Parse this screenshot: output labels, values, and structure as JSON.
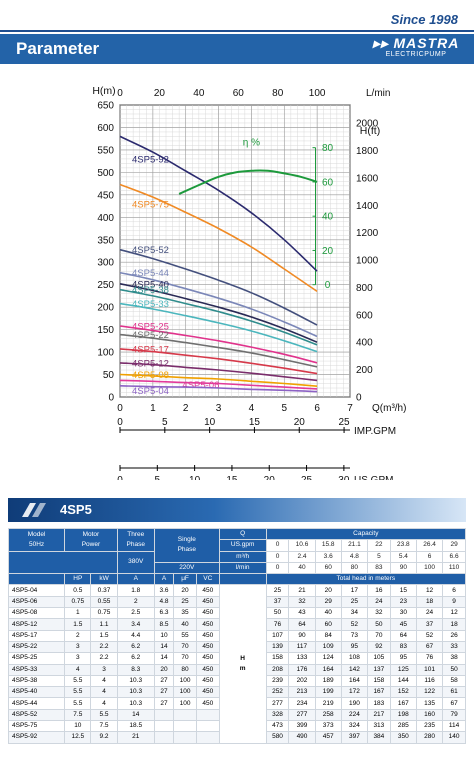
{
  "header": {
    "since": "Since 1998",
    "title": "Parameter",
    "brand": "MASTRA",
    "brand_sub": "ELECTRICPUMP"
  },
  "chart_data": {
    "type": "line",
    "x_axis": {
      "label": "Q(m³/h)",
      "min": 0,
      "max": 7,
      "ticks": [
        0,
        1,
        2,
        3,
        4,
        5,
        6,
        7
      ]
    },
    "top_axis": {
      "label": "L/min",
      "ticks": [
        0,
        20,
        40,
        60,
        80,
        100
      ]
    },
    "y_left": {
      "label": "H(m)",
      "min": 0,
      "max": 650,
      "ticks": [
        0,
        50,
        100,
        150,
        200,
        250,
        300,
        350,
        400,
        450,
        500,
        550,
        600,
        650
      ]
    },
    "y_right": {
      "label": "H(ft)",
      "ticks": [
        0,
        200,
        400,
        600,
        800,
        1000,
        1200,
        1400,
        1600,
        1800,
        2000
      ]
    },
    "eff_axis": {
      "label": "η %",
      "ticks": [
        0,
        20,
        40,
        60,
        80
      ],
      "color": "#1d9a3c"
    },
    "imp_gpm": {
      "label": "IMP.GPM",
      "ticks": [
        0,
        5,
        10,
        15,
        20,
        25
      ]
    },
    "us_gpm": {
      "label": "US.GPM",
      "ticks": [
        0,
        5,
        10,
        15,
        20,
        25,
        30
      ]
    },
    "series": [
      {
        "name": "4SP5-92",
        "color": "#2b2a6e",
        "x": [
          0,
          1,
          2,
          3,
          4,
          5,
          6
        ],
        "y": [
          580,
          545,
          503,
          460,
          410,
          350,
          280
        ]
      },
      {
        "name": "4SP5-75",
        "color": "#f08a24",
        "x": [
          0,
          1,
          2,
          3,
          4,
          5,
          6
        ],
        "y": [
          473,
          445,
          411,
          375,
          334,
          285,
          235
        ]
      },
      {
        "name": "4SP5-52",
        "color": "#44507d",
        "x": [
          0,
          1,
          2,
          3,
          4,
          5,
          6
        ],
        "y": [
          328,
          308,
          285,
          260,
          232,
          198,
          160
        ]
      },
      {
        "name": "4SP5-44",
        "color": "#7b87b8",
        "x": [
          0,
          1,
          2,
          3,
          4,
          5,
          6
        ],
        "y": [
          277,
          261,
          241,
          220,
          196,
          167,
          135
        ]
      },
      {
        "name": "4SP5-40",
        "color": "#2a2a55",
        "x": [
          0,
          1,
          2,
          3,
          4,
          5,
          6
        ],
        "y": [
          252,
          237,
          219,
          200,
          178,
          152,
          122
        ]
      },
      {
        "name": "4SP5-38",
        "color": "#2f8c8c",
        "x": [
          0,
          1,
          2,
          3,
          4,
          5,
          6
        ],
        "y": [
          239,
          225,
          208,
          190,
          169,
          144,
          116
        ]
      },
      {
        "name": "4SP5-33",
        "color": "#4bb6bd",
        "x": [
          0,
          1,
          2,
          3,
          4,
          5,
          6
        ],
        "y": [
          208,
          196,
          181,
          165,
          147,
          125,
          101
        ]
      },
      {
        "name": "4SP5-25",
        "color": "#e0338c",
        "x": [
          0,
          1,
          2,
          3,
          4,
          5,
          6
        ],
        "y": [
          158,
          148,
          137,
          125,
          111,
          95,
          76
        ]
      },
      {
        "name": "4SP5-22",
        "color": "#6f6f6f",
        "x": [
          0,
          1,
          2,
          3,
          4,
          5,
          6
        ],
        "y": [
          139,
          131,
          121,
          110,
          98,
          83,
          67
        ]
      },
      {
        "name": "4SP5-17",
        "color": "#d6394a",
        "x": [
          0,
          1,
          2,
          3,
          4,
          5,
          6
        ],
        "y": [
          107,
          101,
          93,
          85,
          75,
          64,
          52
        ]
      },
      {
        "name": "4SP5-12",
        "color": "#7a2d6b",
        "x": [
          0,
          1,
          2,
          3,
          4,
          5,
          6
        ],
        "y": [
          76,
          72,
          66,
          60,
          53,
          45,
          37
        ]
      },
      {
        "name": "4SP5-08",
        "color": "#f0a000",
        "x": [
          0,
          1,
          2,
          3,
          4,
          5,
          6
        ],
        "y": [
          50,
          47,
          43,
          40,
          35,
          30,
          24
        ]
      },
      {
        "name": "4SP5-06",
        "color": "#e23a9a",
        "x": [
          0,
          1,
          2,
          3,
          4,
          5,
          6
        ],
        "y": [
          37,
          35,
          32,
          30,
          26,
          22,
          18
        ]
      },
      {
        "name": "4SP5-04",
        "color": "#8c62c4",
        "x": [
          0,
          1,
          2,
          3,
          4,
          5,
          6
        ],
        "y": [
          25,
          23,
          22,
          20,
          17,
          15,
          12
        ]
      }
    ],
    "efficiency": {
      "name": "η %",
      "color": "#1d9a3c",
      "x": [
        1.8,
        2.5,
        3,
        3.5,
        4,
        4.5,
        5,
        5.5,
        6
      ],
      "y": [
        53,
        59,
        63,
        65.5,
        66.5,
        66.5,
        65,
        63,
        60
      ]
    },
    "grid": true
  },
  "section": {
    "title": "4SP5"
  },
  "table": {
    "h": {
      "model": "Model",
      "model_sub": "50Hz",
      "motor": "Motor",
      "motor_sub": "Power",
      "three": "Three",
      "three_sub": "Phase",
      "single": "Single",
      "single_sub": "Phase",
      "q": "Q",
      "capacity": "Capacity",
      "v380": "380V",
      "v220": "220V",
      "hp": "HP",
      "kw": "kW",
      "a1": "A",
      "a2": "A",
      "uf": "μF",
      "vc": "VC",
      "usgpm": "US.gpm",
      "m3h": "m³/h",
      "lmin": "l/min",
      "total": "Total head in meters",
      "hm": "H\nm"
    },
    "usgpm": [
      "0",
      "10.6",
      "15.8",
      "21.1",
      "22",
      "23.8",
      "26.4",
      "29"
    ],
    "m3h": [
      "0",
      "2.4",
      "3.6",
      "4.8",
      "5",
      "5.4",
      "6",
      "6.6"
    ],
    "lmin": [
      "0",
      "40",
      "60",
      "80",
      "83",
      "90",
      "100",
      "110"
    ],
    "rows": [
      [
        "4SP5-04",
        "0.5",
        "0.37",
        "1.8",
        "3.6",
        "20",
        "450",
        "25",
        "21",
        "20",
        "17",
        "16",
        "15",
        "12",
        "6"
      ],
      [
        "4SP5-06",
        "0.75",
        "0.55",
        "2",
        "4.8",
        "25",
        "450",
        "37",
        "32",
        "29",
        "25",
        "24",
        "23",
        "18",
        "9"
      ],
      [
        "4SP5-08",
        "1",
        "0.75",
        "2.5",
        "6.3",
        "35",
        "450",
        "50",
        "43",
        "40",
        "34",
        "32",
        "30",
        "24",
        "12"
      ],
      [
        "4SP5-12",
        "1.5",
        "1.1",
        "3.4",
        "8.5",
        "40",
        "450",
        "76",
        "64",
        "60",
        "52",
        "50",
        "45",
        "37",
        "18"
      ],
      [
        "4SP5-17",
        "2",
        "1.5",
        "4.4",
        "10",
        "55",
        "450",
        "107",
        "90",
        "84",
        "73",
        "70",
        "64",
        "52",
        "26"
      ],
      [
        "4SP5-22",
        "3",
        "2.2",
        "6.2",
        "14",
        "70",
        "450",
        "139",
        "117",
        "109",
        "95",
        "92",
        "83",
        "67",
        "33"
      ],
      [
        "4SP5-25",
        "3",
        "2.2",
        "6.2",
        "14",
        "70",
        "450",
        "158",
        "133",
        "124",
        "108",
        "105",
        "95",
        "76",
        "38"
      ],
      [
        "4SP5-33",
        "4",
        "3",
        "8.3",
        "20",
        "80",
        "450",
        "208",
        "176",
        "164",
        "142",
        "137",
        "125",
        "101",
        "50"
      ],
      [
        "4SP5-38",
        "5.5",
        "4",
        "10.3",
        "27",
        "100",
        "450",
        "239",
        "202",
        "189",
        "164",
        "158",
        "144",
        "116",
        "58"
      ],
      [
        "4SP5-40",
        "5.5",
        "4",
        "10.3",
        "27",
        "100",
        "450",
        "252",
        "213",
        "199",
        "172",
        "167",
        "152",
        "122",
        "61"
      ],
      [
        "4SP5-44",
        "5.5",
        "4",
        "10.3",
        "27",
        "100",
        "450",
        "277",
        "234",
        "219",
        "190",
        "183",
        "167",
        "135",
        "67"
      ],
      [
        "4SP5-52",
        "7.5",
        "5.5",
        "14",
        "",
        "",
        "",
        "328",
        "277",
        "258",
        "224",
        "217",
        "198",
        "160",
        "79"
      ],
      [
        "4SP5-75",
        "10",
        "7.5",
        "18.5",
        "",
        "",
        "",
        "473",
        "399",
        "373",
        "324",
        "313",
        "285",
        "235",
        "114"
      ],
      [
        "4SP5-92",
        "12.5",
        "9.2",
        "21",
        "",
        "",
        "",
        "580",
        "490",
        "457",
        "397",
        "384",
        "350",
        "280",
        "140"
      ]
    ]
  }
}
